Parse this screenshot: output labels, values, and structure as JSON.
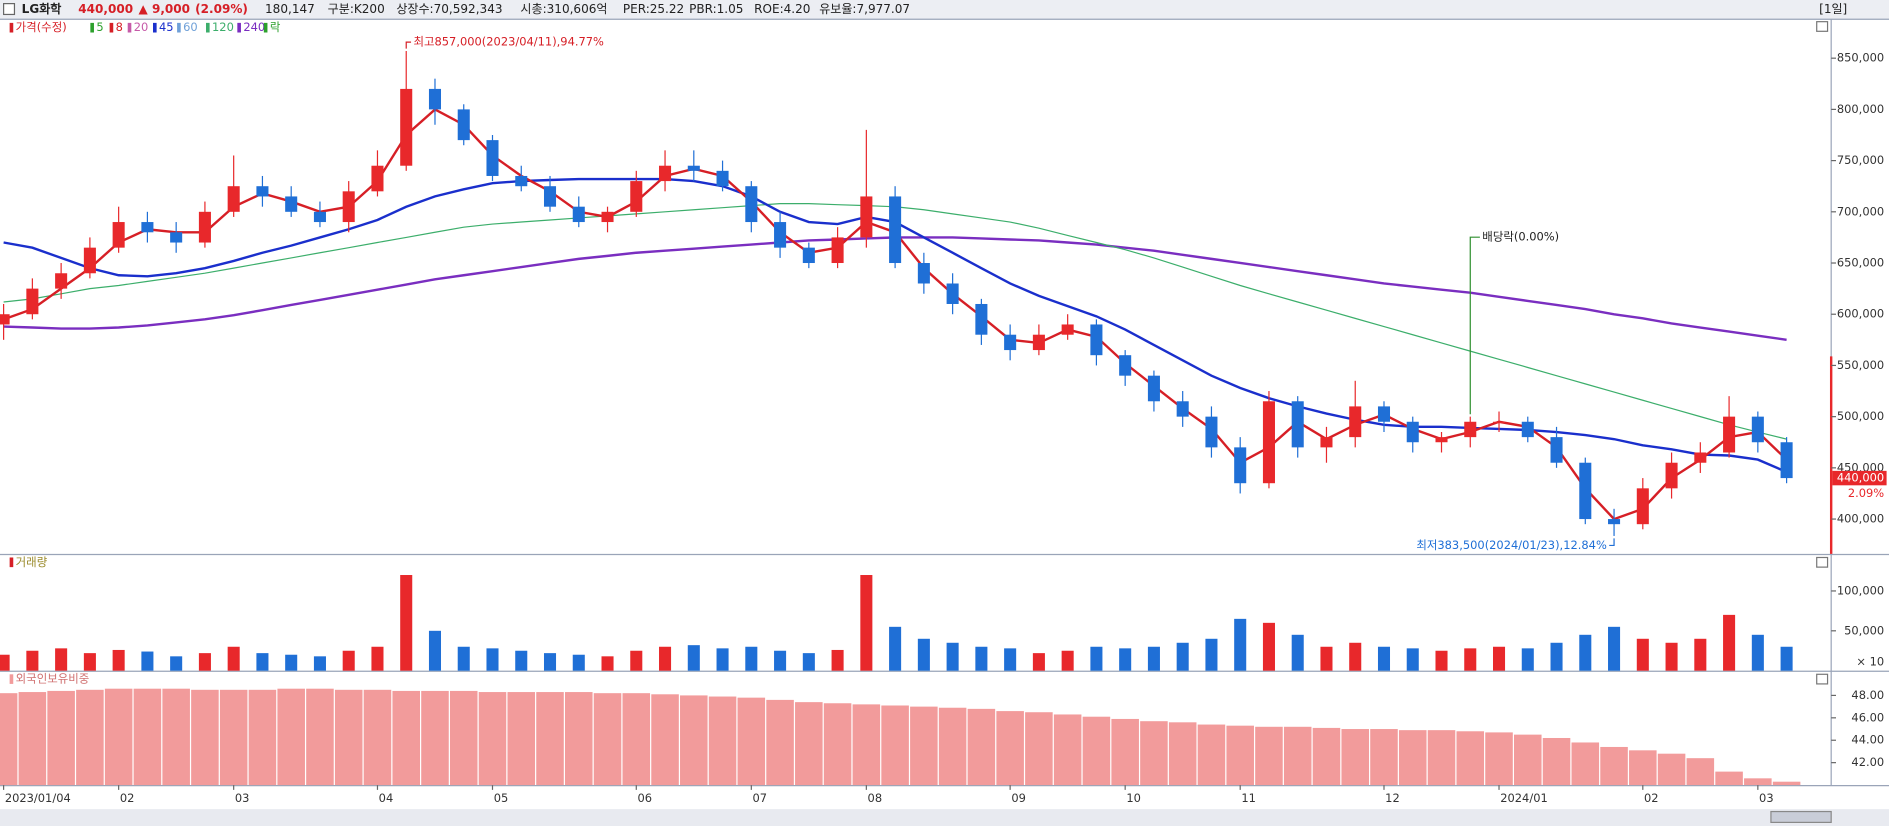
{
  "header": {
    "name": "LG화학",
    "price": "440,000",
    "change": "▲ 9,000",
    "change_pct": "(2.09%)",
    "info": [
      "180,147",
      "구분:K200",
      "상장수:70,592,343",
      "시총:310,606억",
      "PER:25.22",
      "PBR:1.05",
      "ROE:4.20",
      "유보율:7,977.07"
    ],
    "period": "[1일]"
  },
  "chart_data": [
    {
      "type": "candlestick",
      "legend": [
        {
          "name": "가격(수정)",
          "color": "#d61f26"
        },
        {
          "name": "5",
          "color": "#2ca02c"
        },
        {
          "name": "8",
          "color": "#d61f26"
        },
        {
          "name": "20",
          "color": "#c65aa8"
        },
        {
          "name": "45",
          "color": "#1a2fcc"
        },
        {
          "name": "60",
          "color": "#6fa0d8"
        },
        {
          "name": "120",
          "color": "#3cae6b"
        },
        {
          "name": "240",
          "color": "#7a2ec0"
        },
        {
          "name": "락",
          "color": "#2ca02c"
        }
      ],
      "categories": [
        "2023/01/04",
        null,
        null,
        null,
        "02",
        null,
        null,
        null,
        "03",
        null,
        null,
        null,
        null,
        "04",
        null,
        null,
        null,
        "05",
        null,
        null,
        null,
        null,
        "06",
        null,
        null,
        null,
        "07",
        null,
        null,
        null,
        "08",
        null,
        null,
        null,
        null,
        "09",
        null,
        null,
        null,
        "10",
        null,
        null,
        null,
        "11",
        null,
        null,
        null,
        null,
        "12",
        null,
        null,
        null,
        "2024/01",
        null,
        null,
        null,
        null,
        "02",
        null,
        null,
        null,
        "03",
        null
      ],
      "open": [
        590000,
        600000,
        625000,
        640000,
        665000,
        690000,
        680000,
        670000,
        700000,
        725000,
        715000,
        700000,
        690000,
        720000,
        745000,
        820000,
        800000,
        770000,
        735000,
        725000,
        705000,
        690000,
        700000,
        730000,
        745000,
        740000,
        725000,
        690000,
        665000,
        650000,
        675000,
        715000,
        650000,
        630000,
        610000,
        580000,
        565000,
        580000,
        590000,
        560000,
        540000,
        515000,
        500000,
        470000,
        435000,
        515000,
        470000,
        480000,
        510000,
        495000,
        475000,
        480000,
        495000,
        495000,
        480000,
        455000,
        400000,
        395000,
        430000,
        455000,
        465000,
        500000,
        475000
      ],
      "high": [
        610000,
        635000,
        650000,
        675000,
        705000,
        700000,
        690000,
        710000,
        755000,
        735000,
        725000,
        710000,
        730000,
        760000,
        857000,
        830000,
        805000,
        775000,
        745000,
        735000,
        715000,
        705000,
        740000,
        760000,
        760000,
        750000,
        730000,
        700000,
        670000,
        685000,
        780000,
        725000,
        660000,
        640000,
        615000,
        590000,
        590000,
        600000,
        595000,
        565000,
        545000,
        525000,
        510000,
        480000,
        525000,
        520000,
        490000,
        535000,
        515000,
        500000,
        485000,
        500000,
        505000,
        500000,
        490000,
        460000,
        410000,
        440000,
        465000,
        475000,
        520000,
        505000,
        480000
      ],
      "low": [
        575000,
        595000,
        615000,
        635000,
        660000,
        670000,
        660000,
        665000,
        695000,
        705000,
        695000,
        685000,
        680000,
        715000,
        740000,
        785000,
        765000,
        730000,
        720000,
        700000,
        685000,
        680000,
        695000,
        720000,
        730000,
        720000,
        680000,
        655000,
        645000,
        645000,
        665000,
        645000,
        620000,
        600000,
        570000,
        555000,
        560000,
        575000,
        550000,
        530000,
        505000,
        490000,
        460000,
        425000,
        430000,
        460000,
        455000,
        470000,
        485000,
        465000,
        465000,
        470000,
        485000,
        475000,
        450000,
        395000,
        383500,
        390000,
        420000,
        445000,
        460000,
        465000,
        435000
      ],
      "close": [
        600000,
        625000,
        640000,
        665000,
        690000,
        680000,
        670000,
        700000,
        725000,
        715000,
        700000,
        690000,
        720000,
        745000,
        820000,
        800000,
        770000,
        735000,
        725000,
        705000,
        690000,
        700000,
        730000,
        745000,
        740000,
        725000,
        690000,
        665000,
        650000,
        675000,
        715000,
        650000,
        630000,
        610000,
        580000,
        565000,
        580000,
        590000,
        560000,
        540000,
        515000,
        500000,
        470000,
        435000,
        515000,
        470000,
        480000,
        510000,
        495000,
        475000,
        480000,
        495000,
        495000,
        480000,
        455000,
        400000,
        395000,
        430000,
        455000,
        465000,
        500000,
        475000,
        440000
      ],
      "up_color": "#e8282b",
      "down_color": "#1f6fd6",
      "series": [
        {
          "name": "240",
          "color": "#7a2ec0",
          "width": 2,
          "values": [
            588000,
            587000,
            586000,
            586000,
            587000,
            589000,
            592000,
            595000,
            599000,
            604000,
            609000,
            614000,
            619000,
            624000,
            629000,
            634000,
            638000,
            642000,
            646000,
            650000,
            654000,
            657000,
            660000,
            662000,
            664000,
            666000,
            668000,
            670000,
            672000,
            673000,
            674000,
            675000,
            675000,
            675000,
            674000,
            673000,
            672000,
            670000,
            668000,
            665000,
            662000,
            658000,
            654000,
            650000,
            646000,
            642000,
            638000,
            634000,
            630000,
            627000,
            624000,
            621000,
            617000,
            613000,
            609000,
            605000,
            600000,
            596000,
            591000,
            587000,
            583000,
            579000,
            575000
          ]
        },
        {
          "name": "120",
          "color": "#3cae6b",
          "width": 1,
          "values": [
            612000,
            615000,
            620000,
            625000,
            628000,
            632000,
            636000,
            640000,
            645000,
            650000,
            655000,
            660000,
            665000,
            670000,
            675000,
            680000,
            685000,
            688000,
            690000,
            692000,
            694000,
            696000,
            698000,
            700000,
            702000,
            704000,
            706000,
            708000,
            708000,
            707000,
            706000,
            705000,
            702000,
            698000,
            694000,
            690000,
            684000,
            677000,
            670000,
            663000,
            655000,
            646000,
            637000,
            628000,
            620000,
            612000,
            604000,
            596000,
            588000,
            580000,
            572000,
            564000,
            556000,
            548000,
            540000,
            532000,
            524000,
            516000,
            508000,
            500000,
            492000,
            485000,
            478000
          ]
        },
        {
          "name": "45",
          "color": "#1a2fcc",
          "width": 2,
          "values": [
            670000,
            665000,
            655000,
            645000,
            638000,
            637000,
            640000,
            645000,
            652000,
            660000,
            667000,
            675000,
            683000,
            692000,
            705000,
            715000,
            722000,
            728000,
            730000,
            731000,
            732000,
            732000,
            732000,
            732000,
            730000,
            725000,
            715000,
            700000,
            690000,
            688000,
            695000,
            690000,
            675000,
            660000,
            645000,
            630000,
            618000,
            608000,
            598000,
            585000,
            570000,
            555000,
            540000,
            528000,
            518000,
            510000,
            503000,
            497000,
            492000,
            490000,
            490000,
            489000,
            488000,
            487000,
            485000,
            482000,
            478000,
            472000,
            468000,
            463000,
            462000,
            458000,
            446000
          ]
        },
        {
          "name": "8",
          "color": "#d61f26",
          "width": 2,
          "values": [
            595000,
            605000,
            625000,
            645000,
            670000,
            683000,
            680000,
            680000,
            705000,
            718000,
            710000,
            700000,
            705000,
            730000,
            775000,
            800000,
            785000,
            755000,
            735000,
            720000,
            700000,
            695000,
            710000,
            735000,
            742000,
            735000,
            710000,
            680000,
            660000,
            665000,
            690000,
            680000,
            645000,
            620000,
            598000,
            575000,
            572000,
            585000,
            578000,
            552000,
            530000,
            508000,
            488000,
            455000,
            470000,
            495000,
            478000,
            492000,
            502000,
            488000,
            478000,
            485000,
            495000,
            490000,
            470000,
            430000,
            400000,
            410000,
            440000,
            458000,
            480000,
            485000,
            458000
          ]
        }
      ],
      "ylim": [
        366000,
        888000
      ],
      "yticks": [
        {
          "value": 400000,
          "label": "400,000"
        },
        {
          "value": 450000,
          "label": "450,000"
        },
        {
          "value": 500000,
          "label": "500,000"
        },
        {
          "value": 550000,
          "label": "550,000"
        },
        {
          "value": 600000,
          "label": "600,000"
        },
        {
          "value": 650000,
          "label": "650,000"
        },
        {
          "value": 700000,
          "label": "700,000"
        },
        {
          "value": 750000,
          "label": "750,000"
        },
        {
          "value": 800000,
          "label": "800,000"
        },
        {
          "value": 850000,
          "label": "850,000"
        }
      ],
      "max_label": "최고857,000(2023/04/11),94.77%",
      "min_label": "최저383,500(2024/01/23),12.84%",
      "dividend_label": "배당락(0.00%)",
      "last_label": "440,000",
      "last_change_label": "2.09%"
    },
    {
      "type": "bar",
      "title": "거래량",
      "unit_label": "× 10",
      "values": [
        20000,
        25000,
        28000,
        22000,
        26000,
        24000,
        18000,
        22000,
        30000,
        22000,
        20000,
        18000,
        25000,
        30000,
        120000,
        50000,
        30000,
        28000,
        25000,
        22000,
        20000,
        18000,
        25000,
        30000,
        32000,
        28000,
        30000,
        25000,
        22000,
        26000,
        120000,
        55000,
        40000,
        35000,
        30000,
        28000,
        22000,
        25000,
        30000,
        28000,
        30000,
        35000,
        40000,
        65000,
        60000,
        45000,
        30000,
        35000,
        30000,
        28000,
        25000,
        28000,
        30000,
        28000,
        35000,
        45000,
        55000,
        40000,
        35000,
        40000,
        70000,
        45000,
        30000
      ],
      "ylim": [
        0,
        145000
      ],
      "yticks": [
        {
          "value": 50000,
          "label": "50,000"
        },
        {
          "value": 100000,
          "label": "100,000"
        }
      ]
    },
    {
      "type": "bar",
      "title": "외국인보유비중",
      "color": "#f29b9b",
      "values": [
        48.2,
        48.3,
        48.4,
        48.5,
        48.6,
        48.6,
        48.6,
        48.5,
        48.5,
        48.5,
        48.6,
        48.6,
        48.5,
        48.5,
        48.4,
        48.4,
        48.4,
        48.3,
        48.3,
        48.3,
        48.3,
        48.2,
        48.2,
        48.1,
        48.0,
        47.9,
        47.8,
        47.6,
        47.4,
        47.3,
        47.2,
        47.1,
        47.0,
        46.9,
        46.8,
        46.6,
        46.5,
        46.3,
        46.1,
        45.9,
        45.7,
        45.6,
        45.4,
        45.3,
        45.2,
        45.2,
        45.1,
        45.0,
        45.0,
        44.9,
        44.9,
        44.8,
        44.7,
        44.5,
        44.2,
        43.8,
        43.4,
        43.1,
        42.8,
        42.4,
        41.2,
        40.6,
        40.3
      ],
      "ylim": [
        40,
        50.1
      ],
      "yticks": [
        {
          "value": 42,
          "label": "42.00"
        },
        {
          "value": 44,
          "label": "44.00"
        },
        {
          "value": 46,
          "label": "46.00"
        },
        {
          "value": 48,
          "label": "48.00"
        }
      ]
    }
  ]
}
